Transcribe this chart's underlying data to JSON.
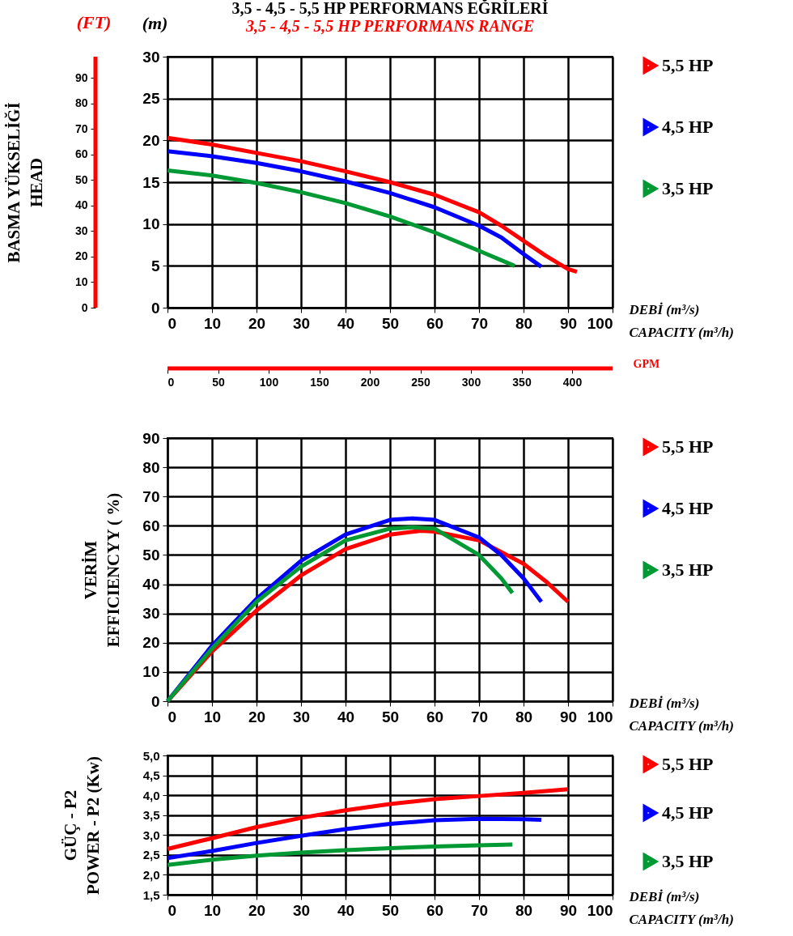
{
  "chart_data": [
    {
      "type": "line",
      "title": "3,5 - 4,5 - 5,5 HP PERFORMANS EĞRİLERİ",
      "subtitle": "3,5 - 4,5 - 5,5 HP PERFORMANS RANGE",
      "xlabel": "DEBİ  (m³/s)\nCAPACITY (m³/h)",
      "ylabel": "(m)",
      "y2label": "BASMA YÜKSELİĞİ\nHEAD",
      "x2label": "GPM",
      "annotations": [
        "(FT)"
      ],
      "xlim": [
        0,
        100
      ],
      "xticks": [
        0,
        10,
        20,
        30,
        40,
        50,
        60,
        70,
        80,
        90,
        100
      ],
      "ylim": [
        0,
        30
      ],
      "yticks": [
        0,
        5,
        10,
        15,
        20,
        25,
        30
      ],
      "y2lim": [
        0,
        98.4
      ],
      "y2ticks": [
        0,
        10,
        20,
        30,
        40,
        50,
        60,
        70,
        80,
        90
      ],
      "x2lim": [
        0,
        440
      ],
      "x2ticks": [
        0,
        50,
        100,
        150,
        200,
        250,
        300,
        350,
        400
      ],
      "grid": true,
      "legend": "right",
      "marker": "none",
      "line_style": "solid",
      "series": [
        {
          "name": "5,5 HP",
          "color": "#ff0000",
          "x": [
            0,
            10,
            20,
            30,
            40,
            50,
            60,
            70,
            75,
            80,
            85,
            90,
            92
          ],
          "values": [
            20.3,
            19.5,
            18.5,
            17.5,
            16.3,
            15.0,
            13.5,
            11.4,
            9.8,
            8.0,
            6.2,
            4.6,
            4.3
          ]
        },
        {
          "name": "4,5 HP",
          "color": "#0000ff",
          "x": [
            0,
            10,
            20,
            30,
            40,
            50,
            60,
            70,
            75,
            80,
            84
          ],
          "values": [
            18.7,
            18.1,
            17.3,
            16.3,
            15.1,
            13.7,
            12.0,
            9.8,
            8.4,
            6.4,
            4.9
          ]
        },
        {
          "name": "3,5 HP",
          "color": "#009933",
          "x": [
            0,
            10,
            20,
            30,
            40,
            50,
            60,
            70,
            78
          ],
          "values": [
            16.4,
            15.8,
            14.9,
            13.8,
            12.5,
            10.9,
            9.0,
            6.8,
            5.0
          ]
        }
      ]
    },
    {
      "type": "line",
      "xlabel": "DEBİ (m³/s)\nCAPACITY (m³/h)",
      "ylabel": "VERİM\nEFFICIENCYY ( %)",
      "xlim": [
        0,
        100
      ],
      "xticks": [
        0,
        10,
        20,
        30,
        40,
        50,
        60,
        70,
        80,
        90,
        100
      ],
      "ylim": [
        0,
        90
      ],
      "yticks": [
        0,
        10,
        20,
        30,
        40,
        50,
        60,
        70,
        80,
        90
      ],
      "grid": true,
      "legend": "right",
      "marker": "none",
      "line_style": "solid",
      "series": [
        {
          "name": "5,5 HP",
          "color": "#ff0000",
          "x": [
            0,
            10,
            20,
            30,
            40,
            50,
            57,
            60,
            70,
            80,
            85,
            90
          ],
          "values": [
            0,
            17,
            31,
            43,
            52,
            57,
            58.3,
            58,
            55,
            47,
            41,
            34
          ]
        },
        {
          "name": "4,5 HP",
          "color": "#0000ff",
          "x": [
            0,
            10,
            20,
            30,
            40,
            50,
            55,
            60,
            70,
            75,
            80,
            84
          ],
          "values": [
            0,
            19,
            35,
            48,
            57,
            62,
            62.5,
            62,
            56,
            50,
            42,
            34
          ]
        },
        {
          "name": "3,5 HP",
          "color": "#009933",
          "x": [
            0,
            10,
            20,
            30,
            40,
            50,
            55,
            60,
            70,
            75,
            77.5
          ],
          "values": [
            0,
            18,
            34,
            46,
            55,
            59,
            59.5,
            59,
            50,
            42,
            37
          ]
        }
      ]
    },
    {
      "type": "line",
      "xlabel": "DEBİ (m³/s)\nCAPACITY (m³/h)",
      "ylabel": "GÜÇ - P2\nPOWER - P2 (Kw)",
      "xlim": [
        0,
        100
      ],
      "xticks": [
        0,
        10,
        20,
        30,
        40,
        50,
        60,
        70,
        80,
        90,
        100
      ],
      "ylim": [
        1.5,
        5
      ],
      "yticks": [
        {
          "value": 1.5,
          "label": "1,5"
        },
        {
          "value": 2,
          "label": "2,0"
        },
        {
          "value": 2.5,
          "label": "2,5"
        },
        {
          "value": 3,
          "label": "3,0"
        },
        {
          "value": 3.5,
          "label": "3,5"
        },
        {
          "value": 4,
          "label": "4,0"
        },
        {
          "value": 4.5,
          "label": "4,5"
        },
        {
          "value": 5,
          "label": "5,0"
        }
      ],
      "grid": true,
      "legend": "right",
      "marker": "none",
      "line_style": "solid",
      "series": [
        {
          "name": "5,5 HP",
          "color": "#ff0000",
          "x": [
            0,
            10,
            20,
            30,
            40,
            50,
            60,
            70,
            80,
            90
          ],
          "values": [
            2.65,
            2.92,
            3.2,
            3.43,
            3.62,
            3.78,
            3.9,
            3.98,
            4.06,
            4.15
          ]
        },
        {
          "name": "4,5 HP",
          "color": "#0000ff",
          "x": [
            0,
            10,
            20,
            30,
            40,
            50,
            60,
            70,
            80,
            84
          ],
          "values": [
            2.42,
            2.6,
            2.8,
            2.98,
            3.15,
            3.28,
            3.37,
            3.41,
            3.4,
            3.38
          ]
        },
        {
          "name": "3,5 HP",
          "color": "#009933",
          "x": [
            0,
            10,
            20,
            30,
            40,
            50,
            60,
            70,
            77.5
          ],
          "values": [
            2.25,
            2.38,
            2.48,
            2.56,
            2.62,
            2.67,
            2.71,
            2.74,
            2.76
          ]
        }
      ]
    }
  ]
}
